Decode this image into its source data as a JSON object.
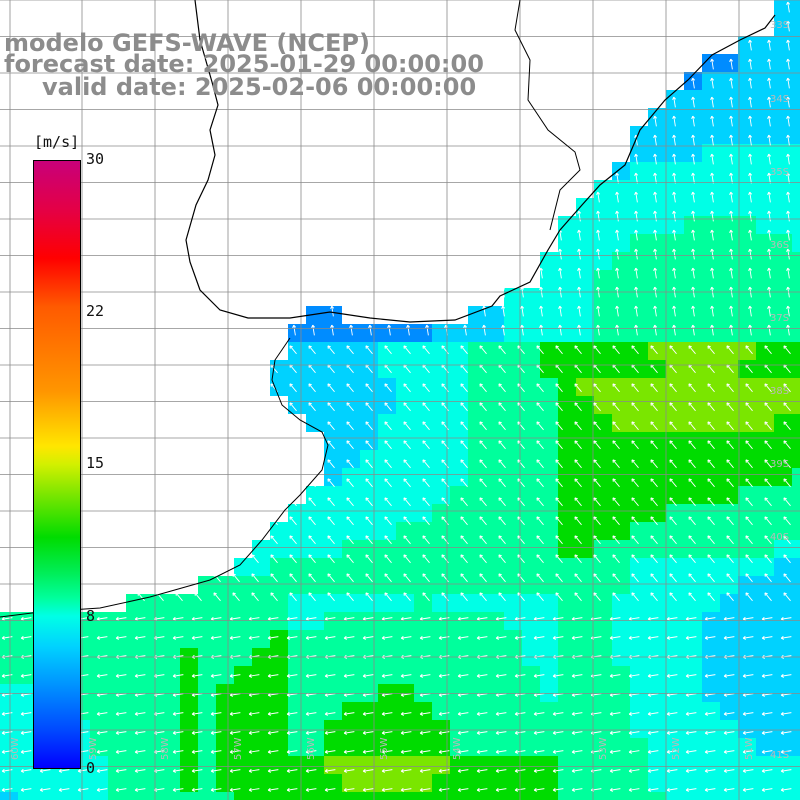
{
  "header": {
    "line1": "modelo GEFS-WAVE (NCEP)",
    "line2": "forecast date: 2025-01-29 00:00:00",
    "line3": "valid date: 2025-02-06 00:00:00"
  },
  "colorbar": {
    "units": "[m/s]",
    "min": 0,
    "max": 30,
    "ticks": [
      "30",
      "22",
      "15",
      "8",
      "0"
    ],
    "colors": [
      "#0000ff",
      "#008cff",
      "#00d2ff",
      "#00ffe6",
      "#00ff9c",
      "#00dc00",
      "#7ae600",
      "#ffe600",
      "#ff9600",
      "#ff5a00",
      "#ff0000",
      "#e40046",
      "#c8007a"
    ]
  },
  "lat_labels": [
    "33S",
    "34S",
    "35S",
    "36S",
    "37S",
    "38S",
    "39S",
    "40S",
    "41S"
  ],
  "lon_labels": [
    "60W",
    "59W",
    "58W",
    "57W",
    "56W",
    "55W",
    "54W",
    "53W",
    "52W",
    "51W"
  ],
  "colors": {
    "land": "#ffffff",
    "coast": "#000000",
    "grid": "#8a8a8a",
    "arrows": "#ffffff",
    "text": "#8c8c8c"
  }
}
